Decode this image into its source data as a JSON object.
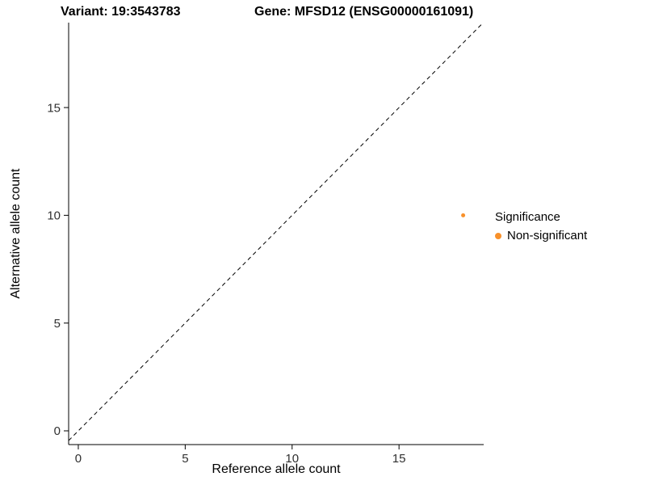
{
  "chart_data": {
    "type": "scatter",
    "titles": [
      "Variant: 19:3543783",
      "Gene: MFSD12 (ENSG00000161091)"
    ],
    "xlabel": "Reference allele count",
    "ylabel": "Alternative allele count",
    "xlim": [
      -0.452,
      18.96
    ],
    "ylim": [
      -0.638,
      18.94
    ],
    "xticks": [
      0,
      5,
      10,
      15
    ],
    "yticks": [
      0,
      5,
      10,
      15
    ],
    "grid": false,
    "points": [
      {
        "x": 18,
        "y": 10,
        "series": "Non-significant"
      }
    ],
    "reference_line": {
      "type": "identity",
      "slope": 1,
      "intercept": 0,
      "style": "dashed",
      "color": "#000000"
    },
    "legend": {
      "title": "Significance",
      "position": "right",
      "entries": [
        {
          "label": "Non-significant",
          "color": "#F8912B"
        }
      ]
    }
  }
}
